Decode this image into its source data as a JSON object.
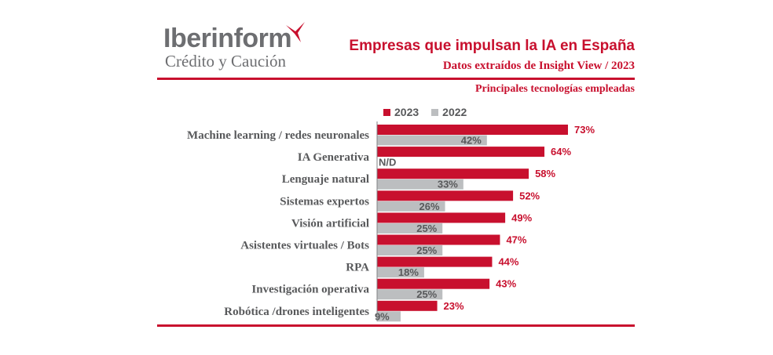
{
  "brand": {
    "name": "Iberinform",
    "tagline": "Crédito y Caución",
    "accent_color": "#c8102e"
  },
  "header": {
    "title": "Empresas que impulsan la IA en España",
    "subtitle": "Datos extraídos de Insight View / 2023"
  },
  "chart_data": {
    "type": "bar",
    "orientation": "horizontal",
    "title": "Principales tecnologías empleadas",
    "categories": [
      "Machine learning / redes neuronales",
      "IA Generativa",
      "Lenguaje natural",
      "Sistemas expertos",
      "Visión artificial",
      "Asistentes virtuales / Bots",
      "RPA",
      "Investigación operativa",
      "Robótica /drones inteligentes"
    ],
    "series": [
      {
        "name": "2023",
        "color": "#c8102e",
        "values": [
          73,
          64,
          58,
          52,
          49,
          47,
          44,
          43,
          23
        ],
        "labels": [
          "73%",
          "64%",
          "58%",
          "52%",
          "49%",
          "47%",
          "44%",
          "43%",
          "23%"
        ]
      },
      {
        "name": "2022",
        "color": "#bcbec0",
        "values": [
          42,
          null,
          33,
          26,
          25,
          25,
          18,
          25,
          9
        ],
        "labels": [
          "42%",
          "N/D",
          "33%",
          "26%",
          "25%",
          "25%",
          "18%",
          "25%",
          "9%"
        ]
      }
    ],
    "xlim": [
      0,
      73
    ],
    "legend": "top",
    "grid": false
  }
}
